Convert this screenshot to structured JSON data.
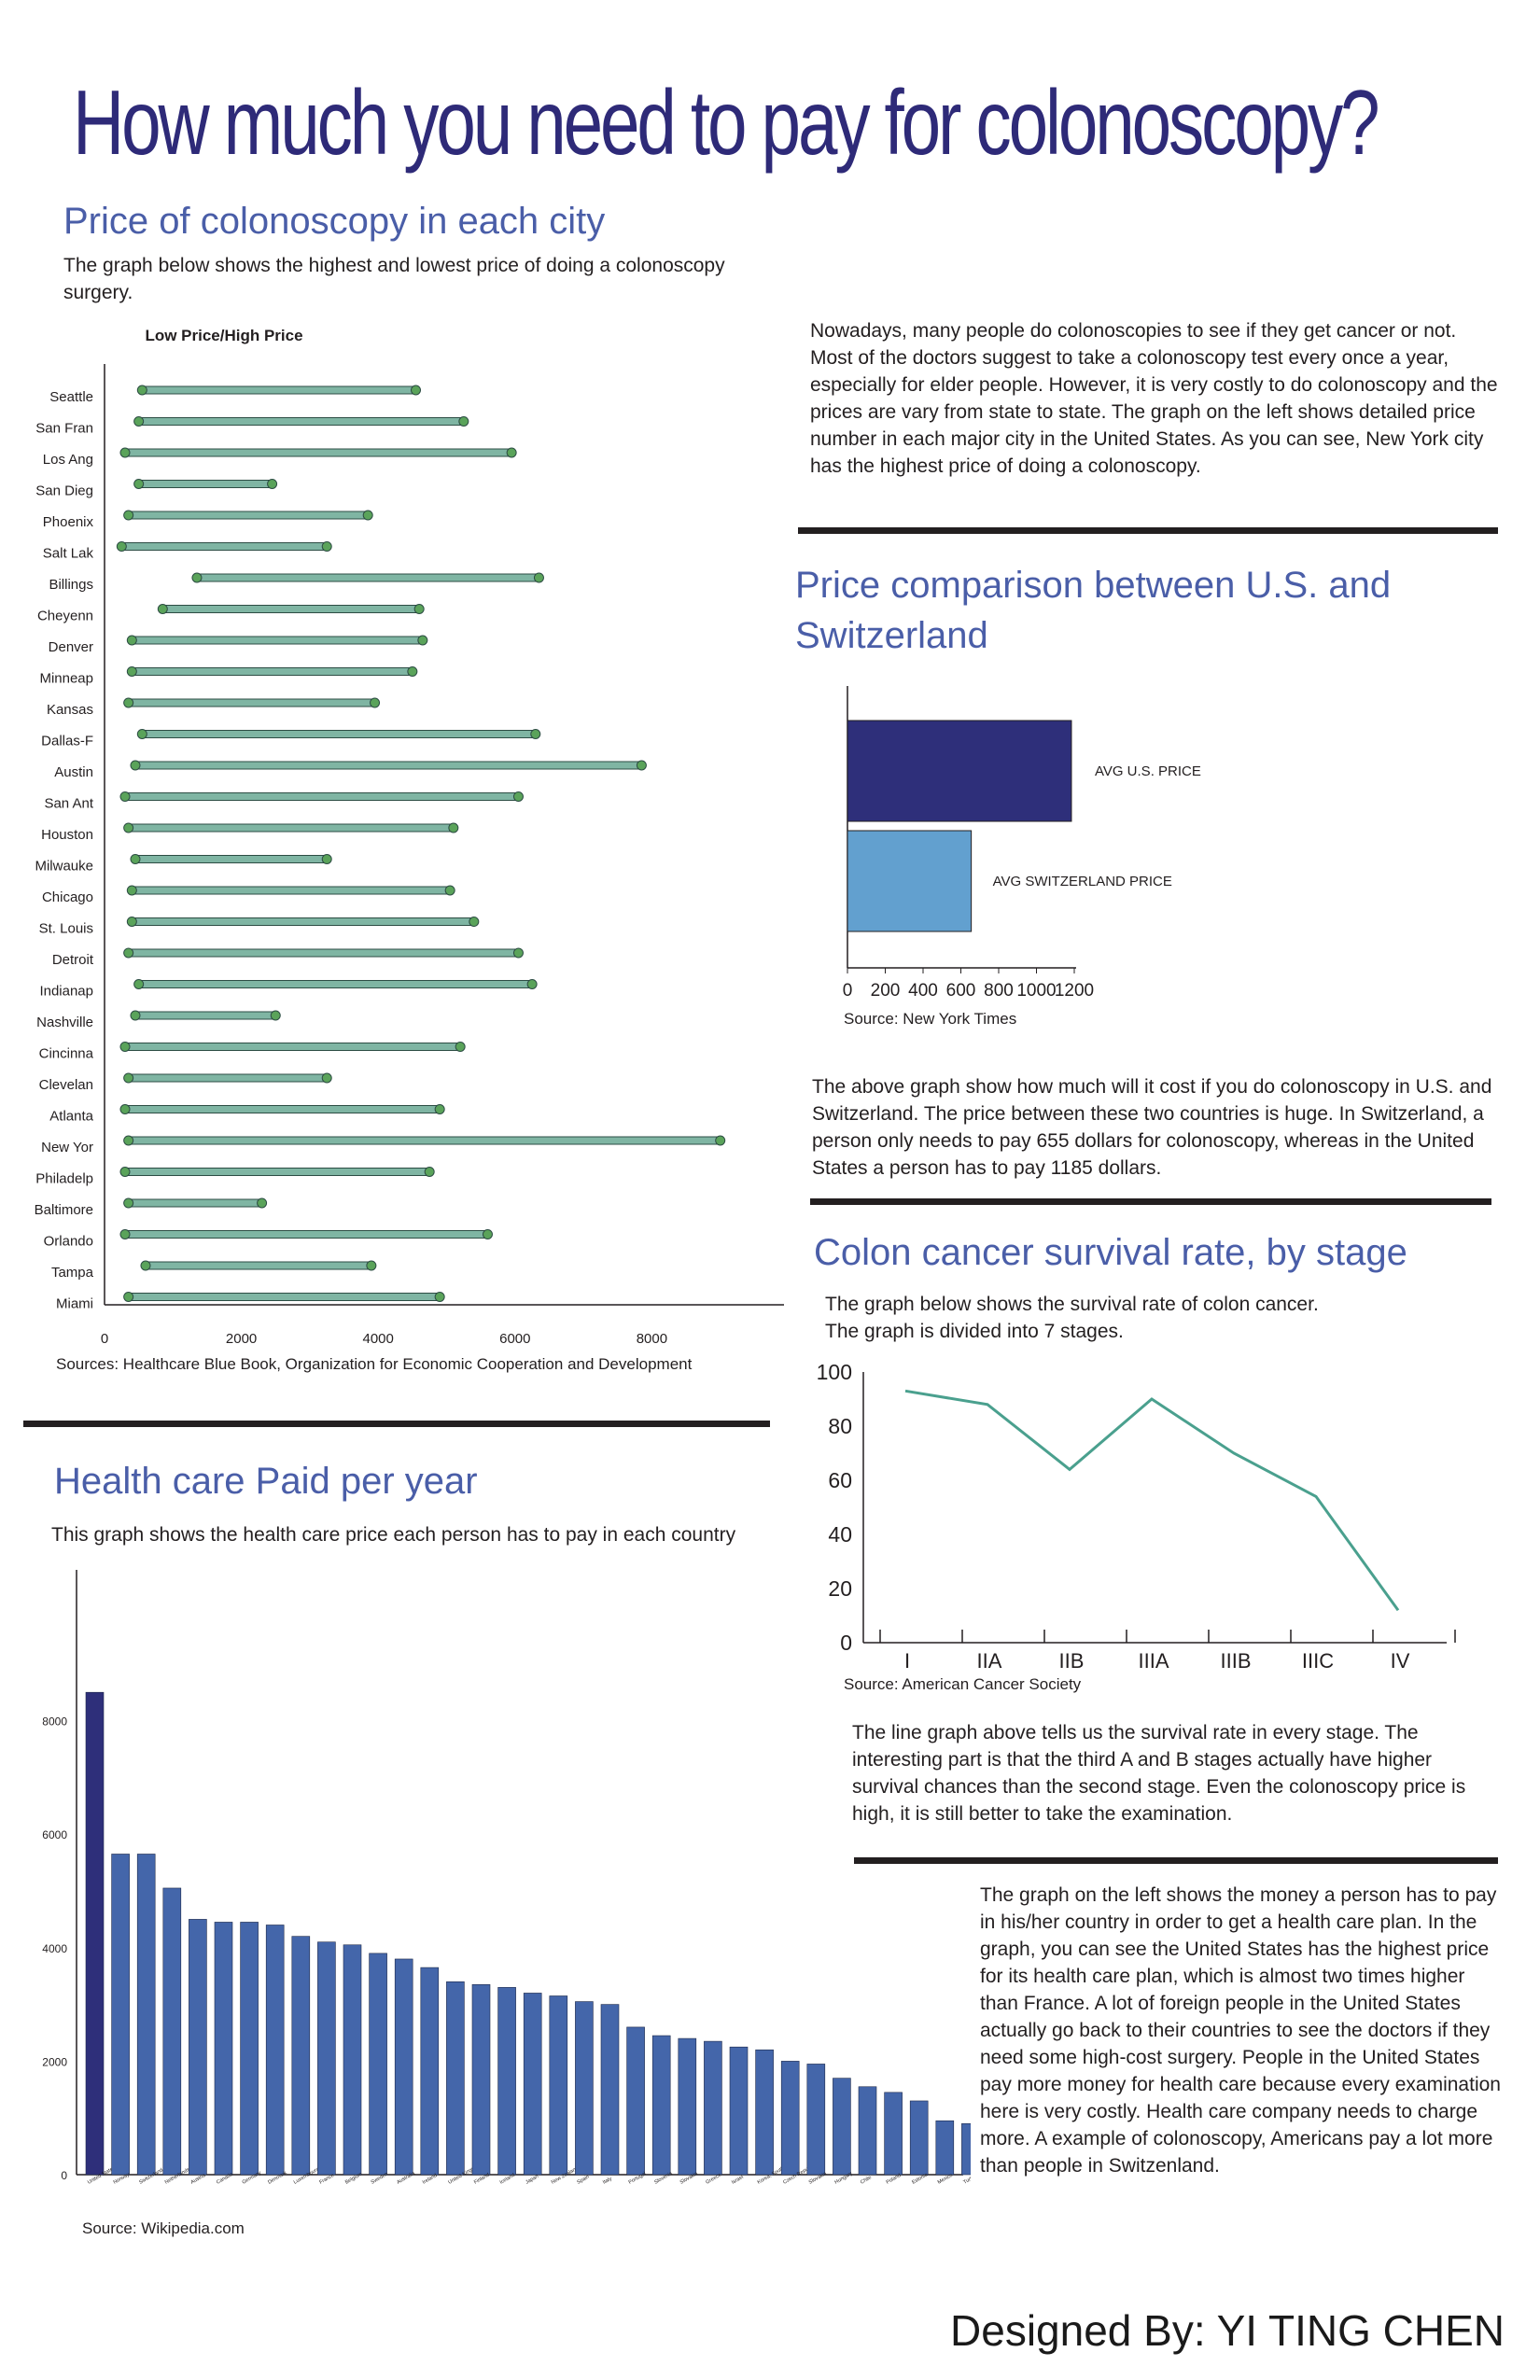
{
  "title": "How much you need to pay for colonoscopy?",
  "designer": "Designed By: YI TING CHEN",
  "section_city": {
    "heading": "Price of colonoscopy in each city",
    "description": "The graph below shows the highest and lowest price of doing a colonoscopy surgery.",
    "source": "Sources: Healthcare Blue Book, Organization for Economic Cooperation and Development"
  },
  "section_intro": {
    "text": "Nowadays, many people do colonoscopies to see if they get cancer or not. Most of the doctors suggest to take a colonoscopy test every once a year, especially for elder people. However, it is very costly to do colonoscopy and the prices are vary from state to state. The graph on the left shows detailed price number in each major city in the United States. As you can see, New York city has the highest price of doing a colonoscopy."
  },
  "section_compare": {
    "heading": "Price comparison between U.S. and Switzerland",
    "source": "Source: New York Times",
    "text": "The above graph show how much will it cost if you do colonoscopy in U.S. and Switzerland. The price between these two countries is huge. In Switzerland, a person only needs to pay 655 dollars for colonoscopy, whereas in the United States a person has to pay 1185 dollars."
  },
  "section_survival": {
    "heading": "Colon cancer survival rate, by stage",
    "description_1": "The graph below shows the survival rate of colon cancer.",
    "description_2": "The graph is divided into 7 stages.",
    "source": "Source: American Cancer Society",
    "text": "The line graph above tells us the survival rate in every stage. The interesting part is that the third A and B stages actually have higher survival chances than the second stage. Even the colonoscopy price is high, it is still better to take the examination."
  },
  "section_health": {
    "heading": "Health care Paid per year",
    "description": "This graph shows the health care price each person has to pay in each country",
    "source": "Source: Wikipedia.com",
    "text": "The graph on the left shows the money a person has to pay in his/her country in order to get a health care plan. In the graph, you can see the United States has the highest price for its health care plan, which is almost two times higher than France. A lot of foreign people in the United States actually go back to their countries to see the doctors if they need some high-cost surgery. People in the United States pay more money for health care because every examination here is very costly. Health care company needs to charge more. A example of colonoscopy, Americans pay a lot more than people in Switzenland."
  },
  "colors": {
    "title": "#2e2a78",
    "heading": "#4a5ea8",
    "dumbbell_bar": "#7fb5a3",
    "dumbbell_dot": "#5aa35a",
    "us_bar": "#2e2f7a",
    "swiss_bar": "#62a0cf",
    "line": "#4aa08e",
    "health_bar": "#4466aa",
    "health_bar_us": "#2e2f7a"
  },
  "chart_data": [
    {
      "id": "city",
      "type": "dumbbell",
      "title": "Low Price/High Price",
      "categories": [
        "Seattle",
        "San Fran",
        "Los Ang",
        "San Dieg",
        "Phoenix",
        "Salt Lak",
        "Billings",
        "Cheyenn",
        "Denver",
        "Minneap",
        "Kansas",
        "Dallas-F",
        "Austin",
        "San Ant",
        "Houston",
        "Milwauke",
        "Chicago",
        "St. Louis",
        "Detroit",
        "Indianap",
        "Nashville",
        "Cincinna",
        "Clevelan",
        "Atlanta",
        "New Yor",
        "Philadelp",
        "Baltimore",
        "Orlando",
        "Tampa",
        "Miami"
      ],
      "series": [
        {
          "name": "Low Price",
          "values": [
            550,
            500,
            300,
            500,
            350,
            250,
            1350,
            850,
            400,
            400,
            350,
            550,
            450,
            300,
            350,
            450,
            400,
            400,
            350,
            500,
            450,
            300,
            350,
            300,
            350,
            300,
            350,
            300,
            600,
            350
          ]
        },
        {
          "name": "High Price",
          "values": [
            4550,
            5250,
            5950,
            2450,
            3850,
            3250,
            6350,
            4600,
            4650,
            4500,
            3950,
            6300,
            7850,
            6050,
            5100,
            3250,
            5050,
            5400,
            6050,
            6250,
            2500,
            5200,
            3250,
            4900,
            9000,
            4750,
            2300,
            5600,
            3900,
            4900
          ]
        }
      ],
      "x_ticks": [
        0,
        2000,
        4000,
        6000,
        8000
      ],
      "xlim": [
        0,
        10000
      ],
      "grid": false
    },
    {
      "id": "compare",
      "type": "bar",
      "orientation": "horizontal",
      "categories": [
        "AVG U.S. PRICE",
        "AVG SWITZERLAND PRICE"
      ],
      "values": [
        1185,
        655
      ],
      "x_ticks": [
        0,
        200,
        400,
        600,
        800,
        1000,
        1200
      ],
      "xlim": [
        0,
        1200
      ],
      "grid": false
    },
    {
      "id": "survival",
      "type": "line",
      "x": [
        "I",
        "IIA",
        "IIB",
        "IIIA",
        "IIIB",
        "IIIC",
        "IV"
      ],
      "values": [
        93,
        88,
        64,
        90,
        70,
        54,
        12
      ],
      "y_ticks": [
        0,
        20,
        40,
        60,
        80,
        100
      ],
      "ylim": [
        0,
        100
      ],
      "grid": false
    },
    {
      "id": "health",
      "type": "bar",
      "categories": [
        "United States",
        "Norway",
        "Switzerland",
        "Netherlands",
        "Austria",
        "Canada",
        "Germany",
        "Denmark",
        "Luxembourg",
        "France",
        "Belgium",
        "Sweden",
        "Australia",
        "Ireland",
        "United Kingdom",
        "Finland",
        "Iceland",
        "Japan",
        "New Zealand",
        "Spain",
        "Italy",
        "Portugal",
        "Slovenia",
        "Slovakia",
        "Greece",
        "Israel",
        "Korea, South",
        "Czech Republic",
        "Slovakia",
        "Hungary",
        "Chile",
        "Poland",
        "Estonia",
        "Mexico",
        "Turkey"
      ],
      "values": [
        8500,
        5650,
        5650,
        5050,
        4500,
        4450,
        4450,
        4400,
        4200,
        4100,
        4050,
        3900,
        3800,
        3650,
        3400,
        3350,
        3300,
        3200,
        3150,
        3050,
        3000,
        2600,
        2450,
        2400,
        2350,
        2250,
        2200,
        2000,
        1950,
        1700,
        1550,
        1450,
        1300,
        950,
        900
      ],
      "y_ticks": [
        0,
        2000,
        4000,
        6000,
        8000
      ],
      "ylim": [
        0,
        9800
      ],
      "grid": false
    }
  ]
}
